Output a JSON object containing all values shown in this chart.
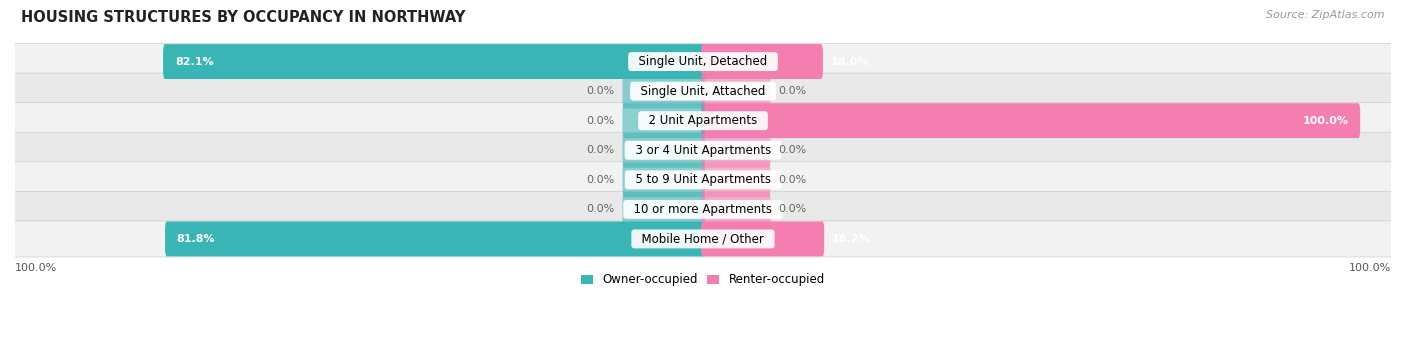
{
  "title": "HOUSING STRUCTURES BY OCCUPANCY IN NORTHWAY",
  "source": "Source: ZipAtlas.com",
  "categories": [
    "Single Unit, Detached",
    "Single Unit, Attached",
    "2 Unit Apartments",
    "3 or 4 Unit Apartments",
    "5 to 9 Unit Apartments",
    "10 or more Apartments",
    "Mobile Home / Other"
  ],
  "owner_values": [
    82.1,
    0.0,
    0.0,
    0.0,
    0.0,
    0.0,
    81.8
  ],
  "renter_values": [
    18.0,
    0.0,
    100.0,
    0.0,
    0.0,
    0.0,
    18.2
  ],
  "owner_color": "#3ab5b5",
  "renter_color": "#f47eb0",
  "owner_label": "Owner-occupied",
  "renter_label": "Renter-occupied",
  "bar_height": 0.58,
  "row_colors": [
    "#f2f2f2",
    "#e9e9e9"
  ],
  "x_left_label": "100.0%",
  "x_right_label": "100.0%",
  "title_fontsize": 10.5,
  "label_fontsize": 8.5,
  "val_fontsize": 8.0,
  "source_fontsize": 8
}
